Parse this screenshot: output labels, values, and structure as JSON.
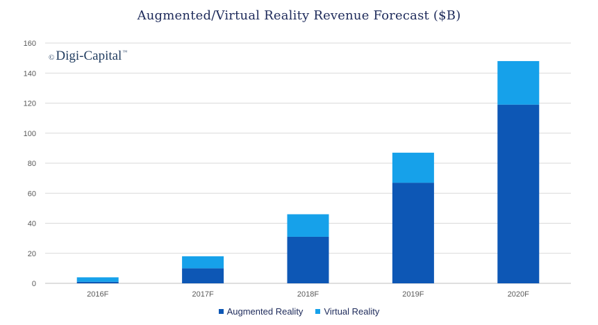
{
  "chart_data": {
    "type": "bar",
    "stacked": true,
    "title": "Augmented/Virtual Reality Revenue Forecast ($B)",
    "categories": [
      "2016F",
      "2017F",
      "2018F",
      "2019F",
      "2020F"
    ],
    "series": [
      {
        "name": "Augmented Reality",
        "color": "#0d57b5",
        "values": [
          1,
          10,
          31,
          67,
          119
        ]
      },
      {
        "name": "Virtual Reality",
        "color": "#16a1ea",
        "values": [
          3,
          8,
          15,
          20,
          29
        ]
      }
    ],
    "ylim": [
      0,
      160
    ],
    "yticks": [
      0,
      20,
      40,
      60,
      80,
      100,
      120,
      140,
      160
    ],
    "grid": true,
    "legend_position": "bottom"
  },
  "logo": {
    "symbol": "©",
    "name": "Digi-Capital",
    "tm": "™"
  }
}
